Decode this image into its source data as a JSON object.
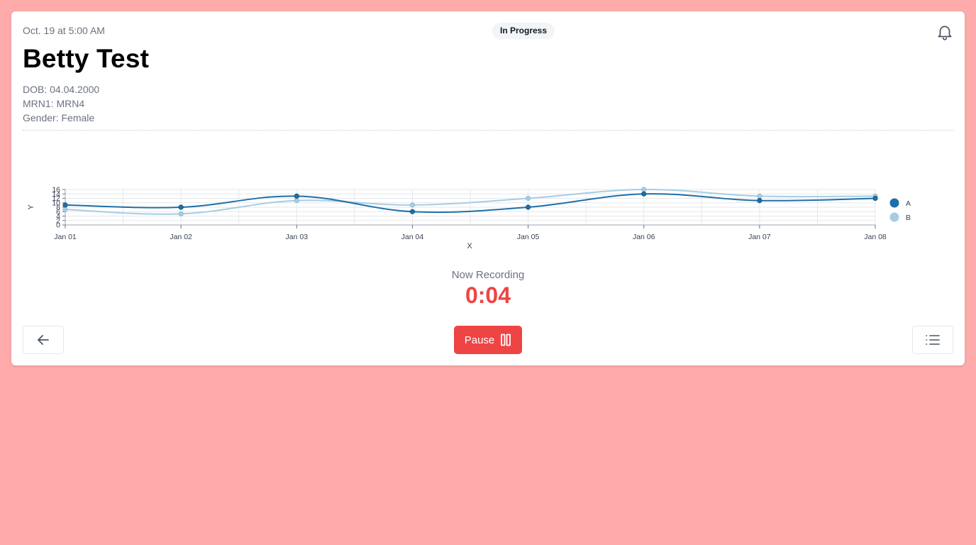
{
  "header": {
    "timestamp": "Oct. 19 at 5:00 AM",
    "status": "In Progress"
  },
  "patient": {
    "name": "Betty Test",
    "dob": "DOB: 04.04.2000",
    "mrn": "MRN1: MRN4",
    "gender": "Gender: Female"
  },
  "recording": {
    "label": "Now Recording",
    "timer": "0:04"
  },
  "controls": {
    "pause_label": "Pause"
  },
  "icons": {
    "bell": "bell-icon",
    "back": "arrow-left-icon",
    "pause": "pause-icon",
    "list": "list-icon"
  },
  "colors": {
    "background": "#ffabab",
    "accent": "#ef4444",
    "series_a": "#1f6fa8",
    "series_b": "#a6cde3"
  },
  "chart_data": {
    "type": "line",
    "xlabel": "X",
    "ylabel": "Y",
    "categories": [
      "Jan 01",
      "Jan 02",
      "Jan 03",
      "Jan 04",
      "Jan 05",
      "Jan 06",
      "Jan 07",
      "Jan 08"
    ],
    "yticks": [
      "0",
      "2",
      "4",
      "6",
      "8",
      "10",
      "12",
      "14",
      "16"
    ],
    "ylim": [
      0,
      16
    ],
    "grid": true,
    "legend": "right",
    "series": [
      {
        "name": "A",
        "values": [
          9,
          8,
          13,
          6,
          8,
          14,
          11,
          12
        ]
      },
      {
        "name": "B",
        "values": [
          7,
          5,
          11,
          9,
          12,
          16,
          13,
          13
        ]
      }
    ]
  }
}
